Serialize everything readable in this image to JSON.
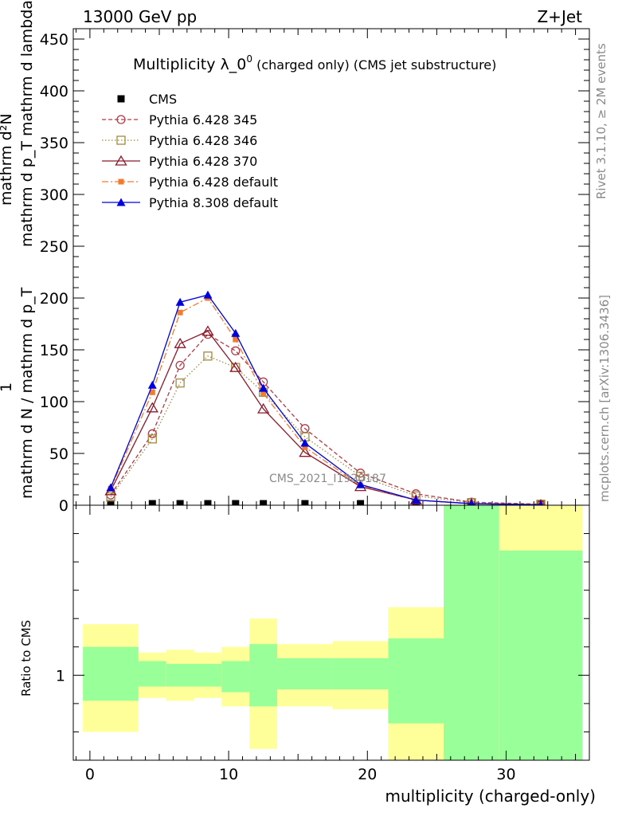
{
  "header": {
    "left": "13000 GeV pp",
    "right": "Z+Jet"
  },
  "side": {
    "rivet": "Rivet 3.1.10, ≥ 2M events",
    "mcplots": "mcplots.cern.ch [arXiv:1306.3436]"
  },
  "watermark": "CMS_2021_I1920187",
  "colors": {
    "cms": "#000000",
    "p345": "#b03a48",
    "p346": "#a08a40",
    "p370": "#8b1a2a",
    "p6def": "#f07c30",
    "p8def": "#0000dd",
    "band_inner": "#99ff99",
    "band_outer": "#ffff99"
  },
  "chart_data": {
    "type": "line",
    "title": "Multiplicity λ_0⁰",
    "title_main": "Multiplicity λ_0",
    "title_sup": "0",
    "title_suffix": " (charged only) (CMS jet substructure)",
    "xlabel": "multiplicity (charged-only)",
    "ylabel_lines": [
      "mathrm d²N",
      "mathrm d p_T mathrm d lambda",
      "1",
      "mathrm d N / mathrm d p_T"
    ],
    "ratio_ylabel": "Ratio to CMS",
    "xlim": [
      -1.2,
      36
    ],
    "ylim": [
      0,
      460
    ],
    "x_ticks": [
      0,
      10,
      20,
      30
    ],
    "y_ticks": [
      0,
      50,
      100,
      150,
      200,
      250,
      300,
      350,
      400,
      450
    ],
    "ratio_ticks": [
      "1"
    ],
    "legend_position": "top-left",
    "x": [
      1.5,
      4.5,
      6.5,
      8.5,
      10.5,
      12.5,
      15.5,
      19.5,
      23.5,
      27.5,
      32.5
    ],
    "series": [
      {
        "name": "CMS",
        "key": "cms",
        "marker": "square",
        "values": [
          1.5,
          1.5,
          1.5,
          1.5,
          1.5,
          1.5,
          1.5,
          1.5,
          0.5,
          0.2,
          0.1
        ]
      },
      {
        "name": "Pythia 6.428 345",
        "key": "p345",
        "marker": "circle-open",
        "dash": "5,3",
        "values": [
          10,
          69,
          135,
          165,
          149,
          119,
          74,
          31,
          11,
          3,
          1
        ]
      },
      {
        "name": "Pythia 6.428 346",
        "key": "p346",
        "marker": "square-open",
        "dash": "1.5,2.5",
        "values": [
          8,
          64,
          118,
          144,
          133,
          109,
          66,
          28,
          9,
          2.5,
          1
        ]
      },
      {
        "name": "Pythia 6.428 370",
        "key": "p370",
        "marker": "triangle-open",
        "dash": "",
        "values": [
          14,
          94,
          156,
          168,
          133,
          93,
          51,
          18,
          5,
          1.5,
          0.5
        ]
      },
      {
        "name": "Pythia 6.428 default",
        "key": "p6def",
        "marker": "square-filled-small",
        "dash": "8,3,2,3",
        "values": [
          16,
          109,
          186,
          200,
          160,
          108,
          56,
          19,
          5,
          1.5,
          0.5
        ]
      },
      {
        "name": "Pythia 8.308 default",
        "key": "p8def",
        "marker": "triangle-filled",
        "dash": "",
        "values": [
          17,
          116,
          196,
          203,
          166,
          113,
          60,
          20,
          5,
          1.5,
          0.5
        ]
      }
    ],
    "ratio_bands": [
      {
        "x0": -0.5,
        "x1": 3.5,
        "inner": [
          0.91,
          1.1
        ],
        "outer": [
          0.8,
          1.18
        ]
      },
      {
        "x0": 3.5,
        "x1": 5.5,
        "inner": [
          0.96,
          1.05
        ],
        "outer": [
          0.92,
          1.08
        ]
      },
      {
        "x0": 5.5,
        "x1": 7.5,
        "inner": [
          0.96,
          1.04
        ],
        "outer": [
          0.91,
          1.09
        ]
      },
      {
        "x0": 7.5,
        "x1": 9.5,
        "inner": [
          0.96,
          1.04
        ],
        "outer": [
          0.92,
          1.08
        ]
      },
      {
        "x0": 9.5,
        "x1": 11.5,
        "inner": [
          0.94,
          1.05
        ],
        "outer": [
          0.89,
          1.1
        ]
      },
      {
        "x0": 11.5,
        "x1": 13.5,
        "inner": [
          0.89,
          1.11
        ],
        "outer": [
          0.74,
          1.2
        ]
      },
      {
        "x0": 13.5,
        "x1": 17.5,
        "inner": [
          0.95,
          1.06
        ],
        "outer": [
          0.89,
          1.11
        ]
      },
      {
        "x0": 17.5,
        "x1": 21.5,
        "inner": [
          0.95,
          1.06
        ],
        "outer": [
          0.88,
          1.12
        ]
      },
      {
        "x0": 21.5,
        "x1": 25.5,
        "inner": [
          0.83,
          1.13
        ],
        "outer": [
          0.61,
          1.24
        ]
      },
      {
        "x0": 25.5,
        "x1": 29.5,
        "inner": [
          0.3,
          1.6
        ],
        "outer": [
          0.3,
          1.6
        ]
      },
      {
        "x0": 29.5,
        "x1": 35.5,
        "inner": [
          0.3,
          1.44
        ],
        "outer": [
          0.3,
          1.6
        ]
      }
    ],
    "ratio_ylim": [
      0.7,
      1.6
    ]
  }
}
